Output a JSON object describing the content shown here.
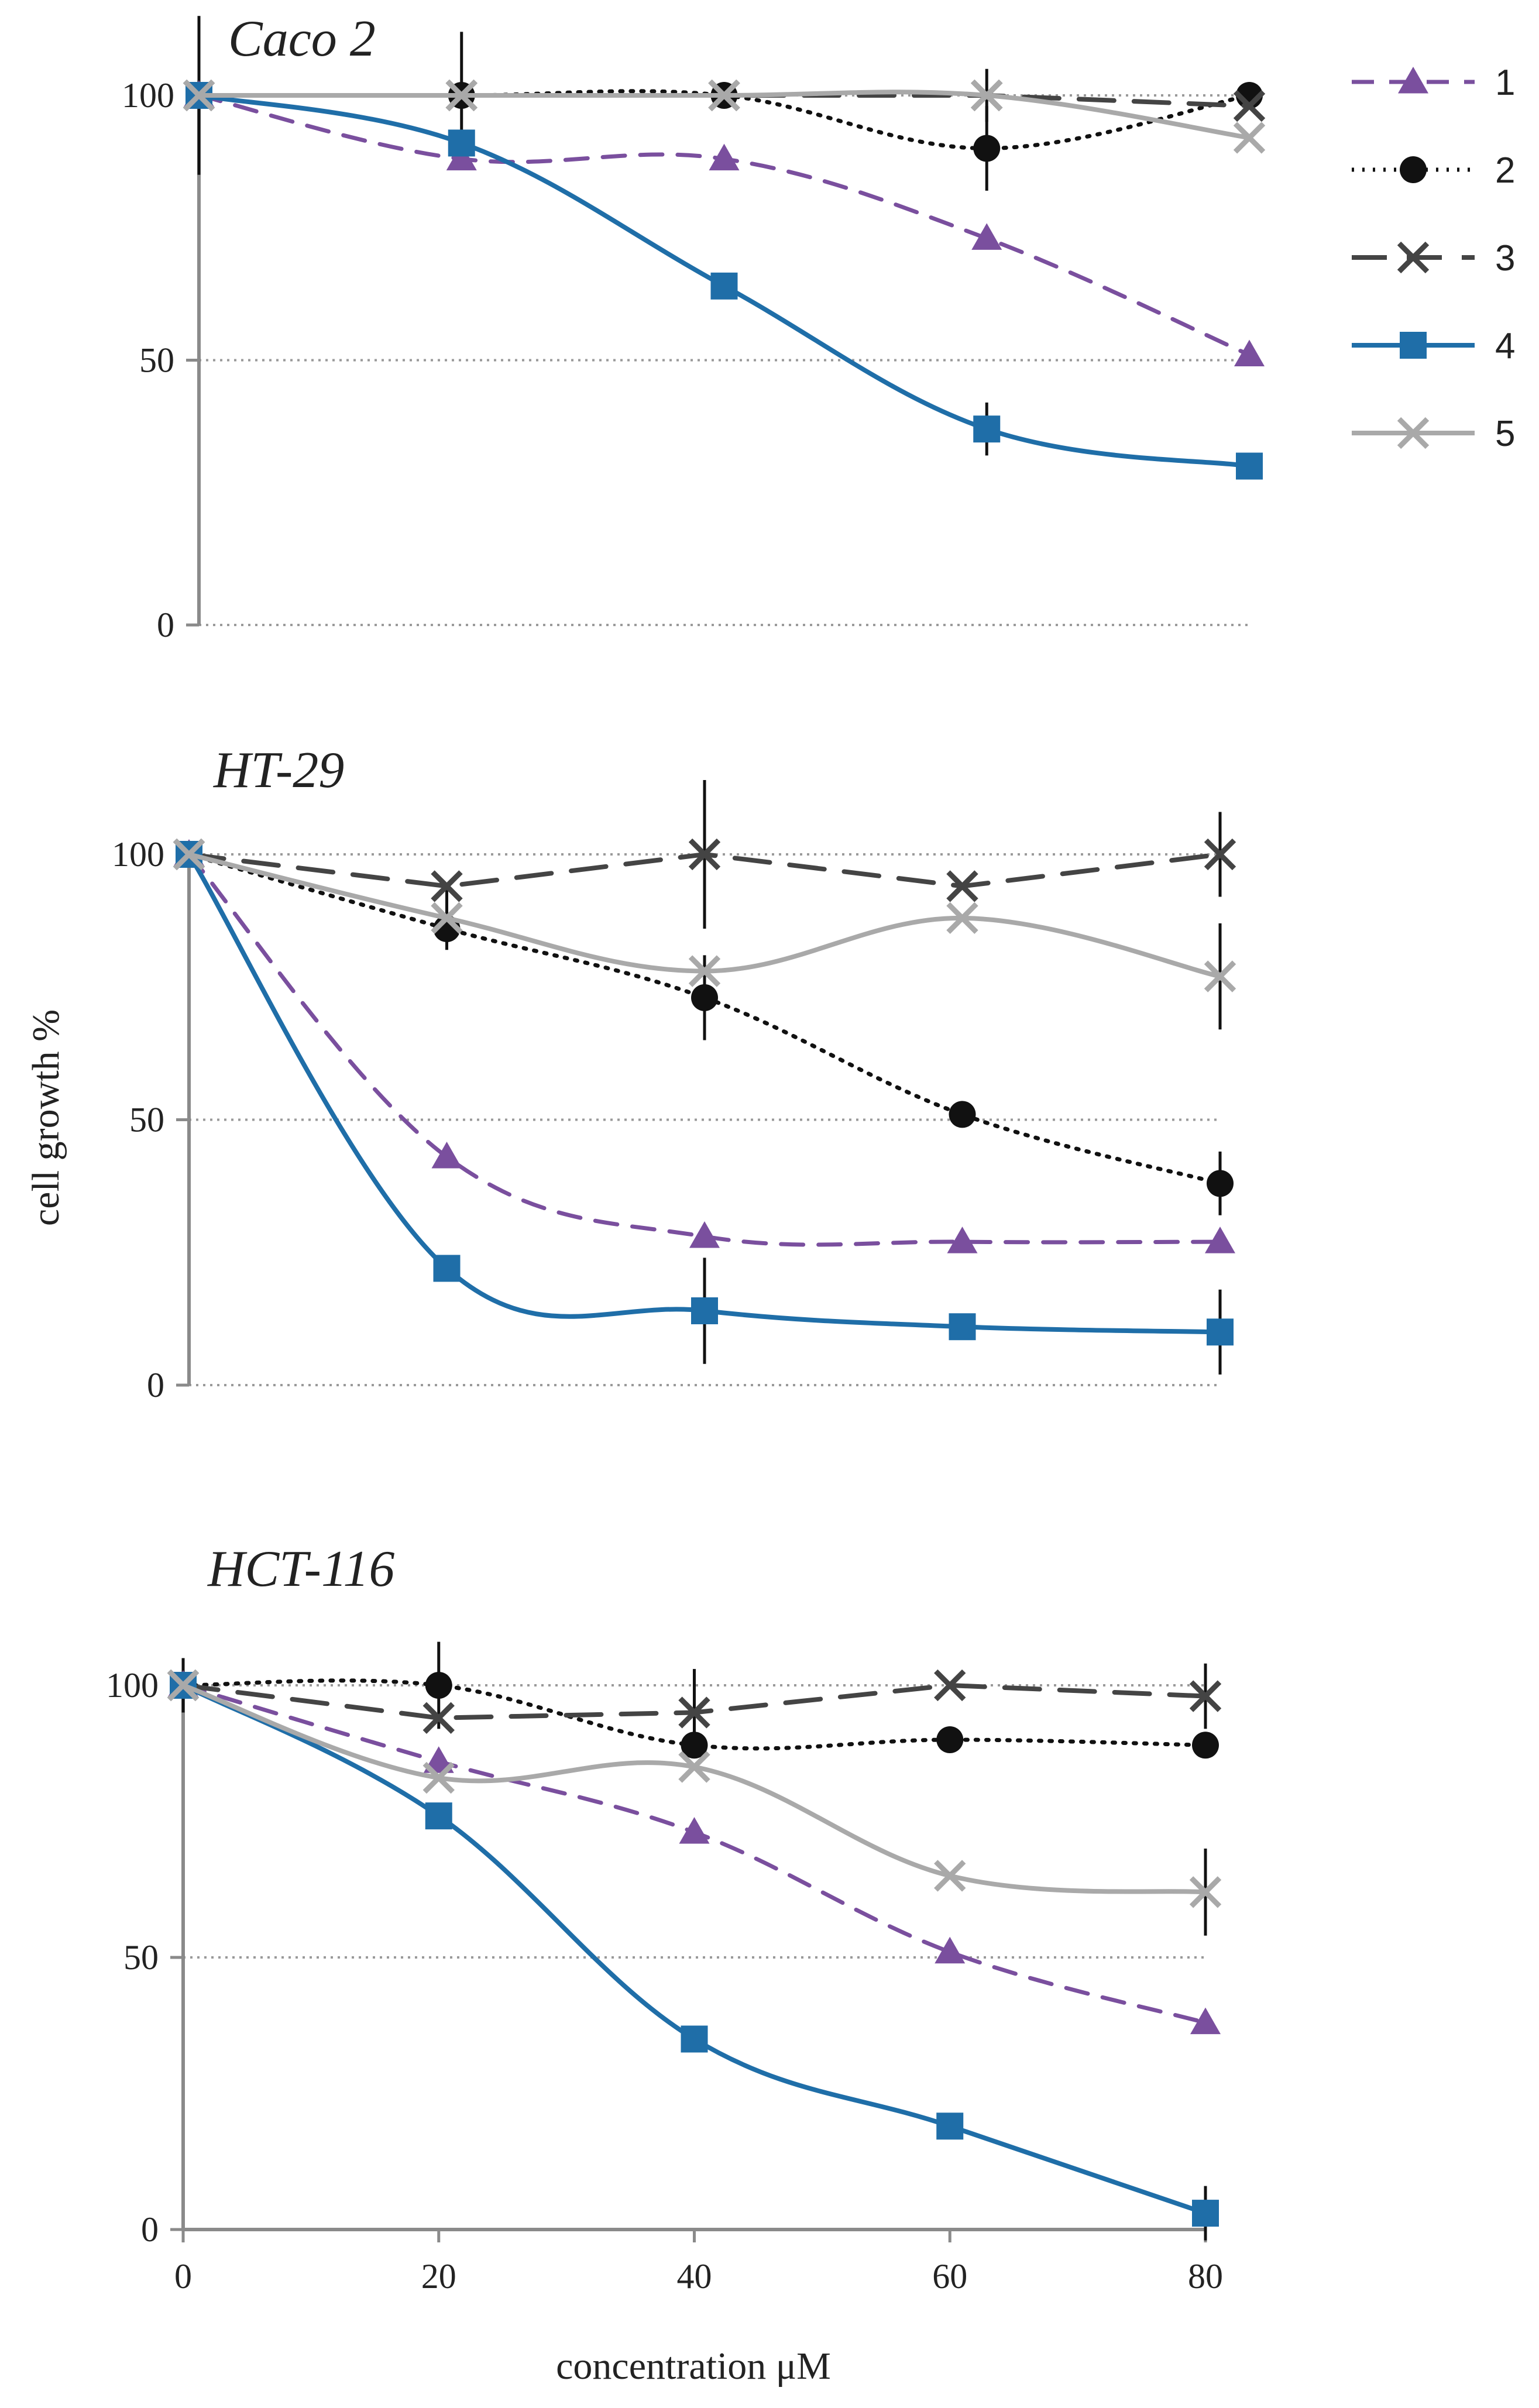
{
  "colors": {
    "s1": "#7a4f9e",
    "s2": "#111111",
    "s3": "#444444",
    "s4": "#1f6ea8",
    "s5": "#a9a9a9",
    "axis": "#8a8a8a",
    "grid": "#9a9a9a"
  },
  "y_label": "cell growth %",
  "x_label": "concentration μM",
  "legend": [
    {
      "key": "1",
      "label": "1",
      "marker": "triangle",
      "dash": "dashed"
    },
    {
      "key": "2",
      "label": "2",
      "marker": "circle",
      "dash": "dotted"
    },
    {
      "key": "3",
      "label": "3",
      "marker": "x",
      "dash": "solid"
    },
    {
      "key": "4",
      "label": "4",
      "marker": "square",
      "dash": "solid"
    },
    {
      "key": "5",
      "label": "5",
      "marker": "x",
      "dash": "solid"
    }
  ],
  "chart_data": [
    {
      "type": "line",
      "title": "Caco 2",
      "xlabel": "",
      "ylabel": "",
      "x": [
        0,
        20,
        40,
        60,
        80
      ],
      "xlim": [
        0,
        80
      ],
      "ylim": [
        0,
        100
      ],
      "yticks": [
        0,
        50,
        100
      ],
      "xticks": [],
      "grid": "horizontal dotted",
      "series": [
        {
          "name": "1",
          "values": [
            100,
            88,
            88,
            73,
            51
          ]
        },
        {
          "name": "2",
          "values": [
            100,
            100,
            100,
            90,
            100
          ]
        },
        {
          "name": "3",
          "values": [
            100,
            100,
            100,
            100,
            98
          ]
        },
        {
          "name": "4",
          "values": [
            100,
            91,
            64,
            37,
            30
          ]
        },
        {
          "name": "5",
          "values": [
            100,
            100,
            100,
            100,
            92
          ]
        }
      ]
    },
    {
      "type": "line",
      "title": "HT-29",
      "xlabel": "",
      "ylabel": "cell growth %",
      "x": [
        0,
        20,
        40,
        60,
        80
      ],
      "xlim": [
        0,
        80
      ],
      "ylim": [
        0,
        100
      ],
      "yticks": [
        0,
        50,
        100
      ],
      "xticks": [],
      "grid": "horizontal dotted",
      "series": [
        {
          "name": "1",
          "values": [
            100,
            43,
            28,
            27,
            27
          ]
        },
        {
          "name": "2",
          "values": [
            100,
            86,
            73,
            51,
            38
          ]
        },
        {
          "name": "3",
          "values": [
            100,
            94,
            100,
            94,
            100
          ]
        },
        {
          "name": "4",
          "values": [
            100,
            22,
            14,
            11,
            10
          ]
        },
        {
          "name": "5",
          "values": [
            100,
            88,
            78,
            88,
            77
          ]
        }
      ]
    },
    {
      "type": "line",
      "title": "HCT-116",
      "xlabel": "concentration μM",
      "ylabel": "",
      "x": [
        0,
        20,
        40,
        60,
        80
      ],
      "xlim": [
        0,
        80
      ],
      "ylim": [
        0,
        100
      ],
      "yticks": [
        0,
        50,
        100
      ],
      "xticks": [
        0,
        20,
        40,
        60,
        80
      ],
      "grid": "horizontal dotted",
      "series": [
        {
          "name": "1",
          "values": [
            100,
            86,
            73,
            51,
            38
          ]
        },
        {
          "name": "2",
          "values": [
            100,
            100,
            89,
            90,
            89
          ]
        },
        {
          "name": "3",
          "values": [
            100,
            94,
            95,
            100,
            98
          ]
        },
        {
          "name": "4",
          "values": [
            100,
            76,
            35,
            19,
            3
          ]
        },
        {
          "name": "5",
          "values": [
            100,
            83,
            85,
            65,
            62
          ]
        }
      ]
    }
  ]
}
